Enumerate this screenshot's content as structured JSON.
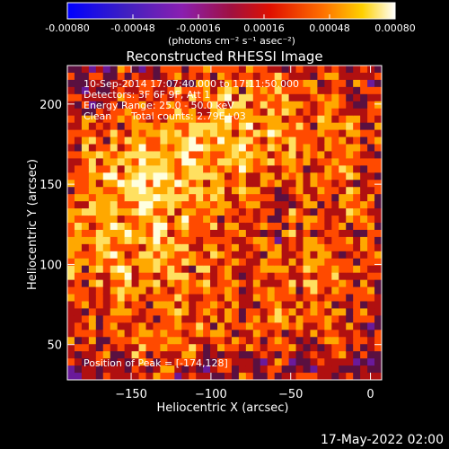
{
  "colorbar": {
    "ticks": [
      "-0.00080",
      "-0.00048",
      "-0.00016",
      "0.00016",
      "0.00048",
      "0.00080"
    ],
    "unit_label": "(photons cm⁻² s⁻¹ asec⁻²)",
    "range": [
      -0.0008,
      0.0008
    ]
  },
  "plot": {
    "title": "Reconstructed RHESSI Image",
    "info_lines": [
      "10-Sep-2014 17:07:40.000 to 17:11:50.000",
      "Detectors: 3F 6F 9F, Att 1",
      "Energy Range: 25.0 - 50.0 keV"
    ],
    "clean_label": "Clean",
    "total_counts": "Total counts: 2.79E+03",
    "peak_label": "Position of Peak = [-174,128]"
  },
  "footer": {
    "timestamp": "17-May-2022 02:00"
  },
  "chart_data": {
    "type": "heatmap",
    "title": "Reconstructed RHESSI Image",
    "xlabel": "Heliocentric X (arcsec)",
    "ylabel": "Heliocentric Y (arcsec)",
    "xlim": [
      -190,
      7
    ],
    "ylim": [
      28,
      224
    ],
    "xticks": [
      -150,
      -100,
      -50,
      0
    ],
    "yticks": [
      50,
      100,
      150,
      200
    ],
    "colorscale": [
      "#0000ff",
      "#5a2db0",
      "#a01fb0",
      "#c01010",
      "#ff5000",
      "#ffb000",
      "#ffffe0"
    ],
    "zlim": [
      -0.0008,
      0.0008
    ],
    "peak": [
      -174,
      128
    ]
  }
}
